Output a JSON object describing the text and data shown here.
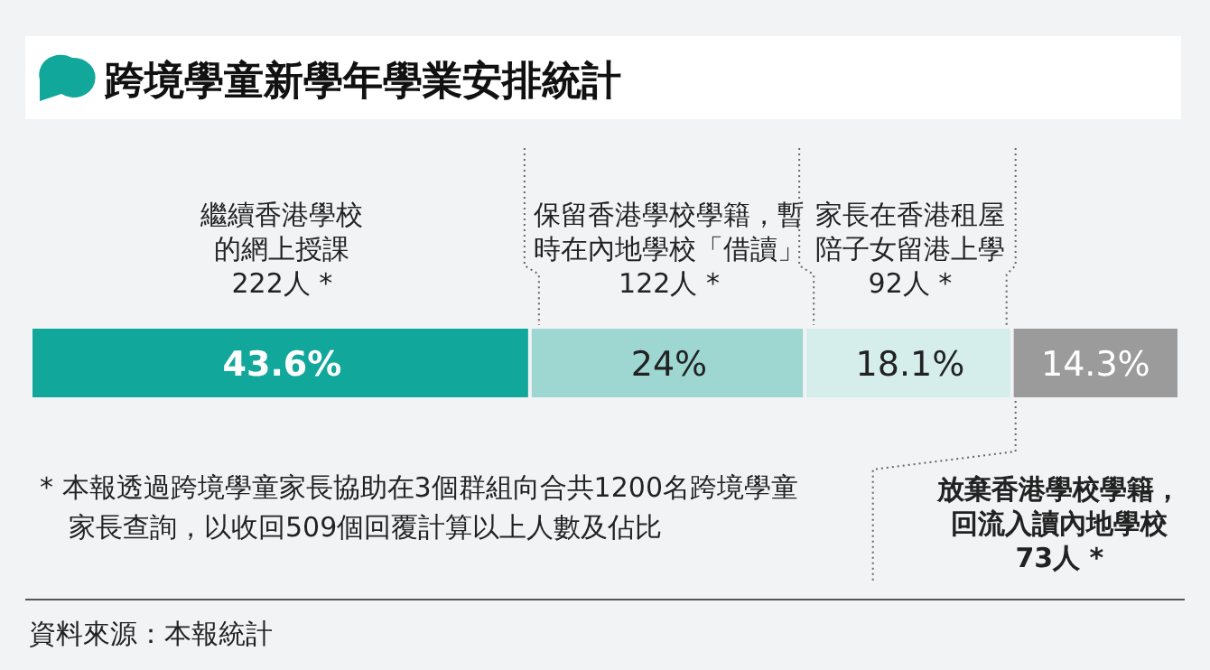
{
  "chart_data": {
    "type": "bar",
    "orientation": "horizontal",
    "stacked": true,
    "title": "跨境學童新學年學業安排統計",
    "categories": [
      null
    ],
    "xlim": [
      0,
      100
    ],
    "series": [
      {
        "name": "繼續香港學校的網上授課",
        "color": "#12a79b",
        "values": [
          43.6
        ],
        "value_labels": [
          "43.6%"
        ]
      },
      {
        "name": "保留香港學校學籍，暫時在內地學校「借讀」",
        "color": "#9ed7d2",
        "values": [
          24
        ],
        "value_labels": [
          "24%"
        ]
      },
      {
        "name": "家長在香港租屋陪子女留港上學",
        "color": "#d5eeeb",
        "values": [
          18.1
        ],
        "value_labels": [
          "18.1%"
        ]
      },
      {
        "name": "放棄香港學校學籍，回流入讀內地學校",
        "color": "#9b9b9b",
        "values": [
          14.3
        ],
        "value_labels": [
          "14.3%"
        ]
      }
    ],
    "annotations": [
      "222人 *",
      "122人 *",
      "92人 *",
      "73人 *",
      "* 本報透過跨境學童家長協助在3個群組向合共1200名跨境學童家長查詢，以收回509個回覆計算以上人數及佔比",
      "資料來源：本報統計"
    ]
  }
}
